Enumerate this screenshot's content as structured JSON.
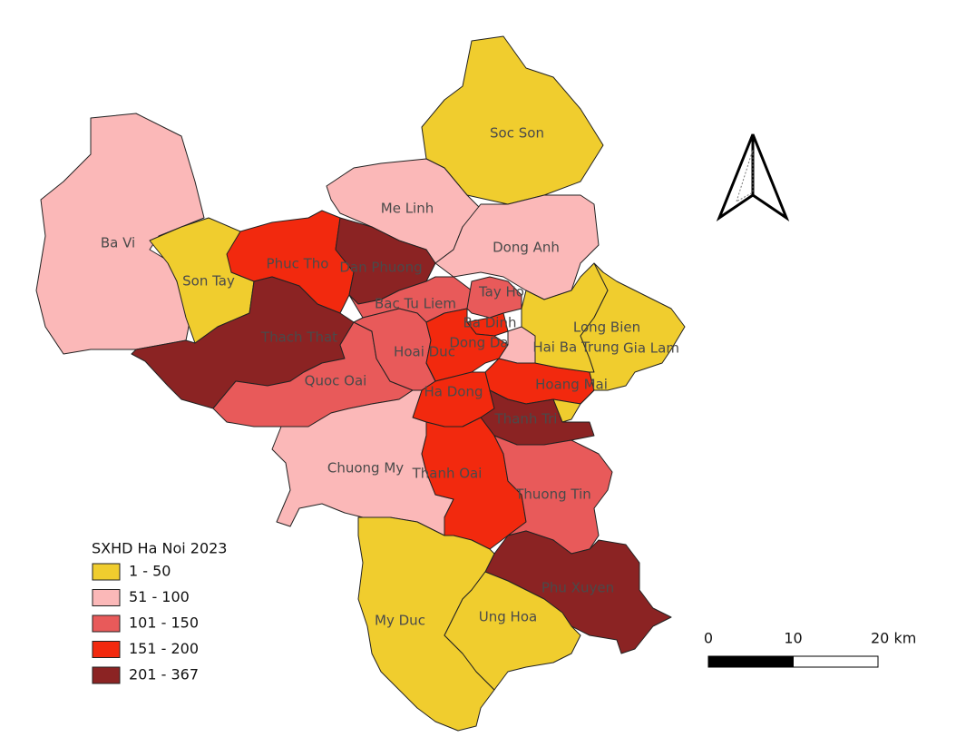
{
  "legend": {
    "title": "SXHD Ha Noi 2023",
    "items": [
      {
        "label": "1 - 50",
        "color": "#f0cd2e"
      },
      {
        "label": "51 - 100",
        "color": "#fbb8b8"
      },
      {
        "label": "101 - 150",
        "color": "#e85a5a"
      },
      {
        "label": "151 - 200",
        "color": "#f2290e"
      },
      {
        "label": "201 - 367",
        "color": "#8b2323"
      }
    ]
  },
  "regions": [
    {
      "name": "Soc Son",
      "color": "#f0cd2e"
    },
    {
      "name": "Me Linh",
      "color": "#fbb8b8"
    },
    {
      "name": "Dong Anh",
      "color": "#fbb8b8"
    },
    {
      "name": "Ba Vi",
      "color": "#fbb8b8"
    },
    {
      "name": "Son Tay",
      "color": "#f0cd2e"
    },
    {
      "name": "Phuc Tho",
      "color": "#f2290e"
    },
    {
      "name": "Dan Phuong",
      "color": "#8b2323"
    },
    {
      "name": "Thach That",
      "color": "#8b2323"
    },
    {
      "name": "Quoc Oai",
      "color": "#e85a5a"
    },
    {
      "name": "Bac Tu Liem",
      "color": "#e85a5a"
    },
    {
      "name": "Hoai Duc",
      "color": "#e85a5a"
    },
    {
      "name": "Tay Ho",
      "color": "#e85a5a"
    },
    {
      "name": "Ba Dinh",
      "color": "#f2290e"
    },
    {
      "name": "Dong Da",
      "color": "#f2290e"
    },
    {
      "name": "Hai Ba Trung",
      "color": "#fbb8b8"
    },
    {
      "name": "Hoang Mai",
      "color": "#f2290e"
    },
    {
      "name": "Long Bien",
      "color": "#f0cd2e"
    },
    {
      "name": "Gia Lam",
      "color": "#f0cd2e"
    },
    {
      "name": "Ha Dong",
      "color": "#f2290e"
    },
    {
      "name": "Thanh Tri",
      "color": "#8b2323"
    },
    {
      "name": "Chuong My",
      "color": "#fbb8b8"
    },
    {
      "name": "Thanh Oai",
      "color": "#f2290e"
    },
    {
      "name": "Thuong Tin",
      "color": "#e85a5a"
    },
    {
      "name": "Phu Xuyen",
      "color": "#8b2323"
    },
    {
      "name": "My Duc",
      "color": "#f0cd2e"
    },
    {
      "name": "Ung Hoa",
      "color": "#f0cd2e"
    }
  ],
  "scale_bar": {
    "ticks": [
      0,
      10,
      {
        "value": 20,
        "label": "20 km"
      }
    ],
    "colors": [
      "#000000",
      "#ffffff"
    ]
  }
}
